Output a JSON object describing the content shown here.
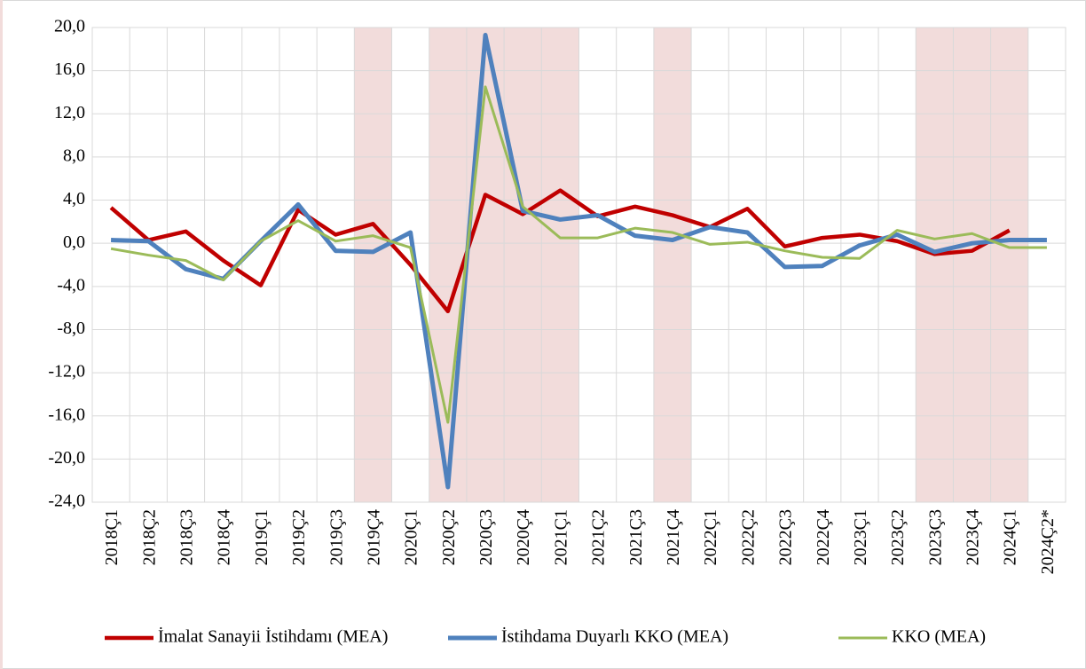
{
  "chart_data": {
    "type": "line",
    "categories": [
      "2018Ç1",
      "2018Ç2",
      "2018Ç3",
      "2018Ç4",
      "2019Ç1",
      "2019Ç2",
      "2019Ç3",
      "2019Ç4",
      "2020Ç1",
      "2020Ç2",
      "2020Ç3",
      "2020Ç4",
      "2021Ç1",
      "2021Ç2",
      "2021Ç3",
      "2021Ç4",
      "2022Ç1",
      "2022Ç2",
      "2022Ç3",
      "2022Ç4",
      "2023Ç1",
      "2023Ç2",
      "2023Ç3",
      "2023Ç4",
      "2024Ç1",
      "2024Ç2*"
    ],
    "shaded_categories": [
      "2019Ç4",
      "2020Ç2",
      "2020Ç3",
      "2020Ç4",
      "2021Ç1",
      "2021Ç4",
      "2023Ç3",
      "2023Ç4",
      "2024Ç1"
    ],
    "shade_color": "#f2dcdb",
    "series": [
      {
        "name": "İmalat Sanayii İstihdamı (MEA)",
        "color": "#c00000",
        "line_width": 4.5,
        "values": [
          3.3,
          0.3,
          1.1,
          -1.6,
          -3.9,
          3.1,
          0.8,
          1.8,
          -2.0,
          -6.3,
          4.5,
          2.7,
          4.9,
          2.5,
          3.4,
          2.6,
          1.5,
          3.2,
          -0.3,
          0.5,
          0.8,
          0.2,
          -1.0,
          -0.7,
          1.2,
          null
        ]
      },
      {
        "name": "İstihdama Duyarlı KKO (MEA)",
        "color": "#4f81bd",
        "line_width": 5,
        "values": [
          0.3,
          0.2,
          -2.4,
          -3.3,
          0.2,
          3.6,
          -0.7,
          -0.8,
          1.0,
          -22.6,
          19.3,
          3.0,
          2.2,
          2.6,
          0.7,
          0.3,
          1.5,
          1.0,
          -2.2,
          -2.1,
          -0.2,
          0.8,
          -0.8,
          0.0,
          0.3,
          0.3
        ]
      },
      {
        "name": "KKO (MEA)",
        "color": "#9bbb59",
        "line_width": 3,
        "values": [
          -0.5,
          -1.1,
          -1.6,
          -3.4,
          0.2,
          2.1,
          0.2,
          0.7,
          -0.4,
          -16.6,
          14.5,
          3.4,
          0.5,
          0.5,
          1.4,
          1.0,
          -0.1,
          0.1,
          -0.7,
          -1.3,
          -1.4,
          1.2,
          0.4,
          0.9,
          -0.4,
          -0.4
        ]
      }
    ],
    "ylim": [
      -24,
      20
    ],
    "yticks": [
      {
        "value": -24,
        "label": "-24,0"
      },
      {
        "value": -20,
        "label": "-20,0"
      },
      {
        "value": -16,
        "label": "-16,0"
      },
      {
        "value": -12,
        "label": "-12,0"
      },
      {
        "value": -8,
        "label": "-8,0"
      },
      {
        "value": -4,
        "label": "-4,0"
      },
      {
        "value": 0,
        "label": "0,0"
      },
      {
        "value": 4,
        "label": "4,0"
      },
      {
        "value": 8,
        "label": "8,0"
      },
      {
        "value": 12,
        "label": "12,0"
      },
      {
        "value": 16,
        "label": "16,0"
      },
      {
        "value": 20,
        "label": "20,0"
      }
    ],
    "grid": true,
    "legend": "bottom"
  }
}
